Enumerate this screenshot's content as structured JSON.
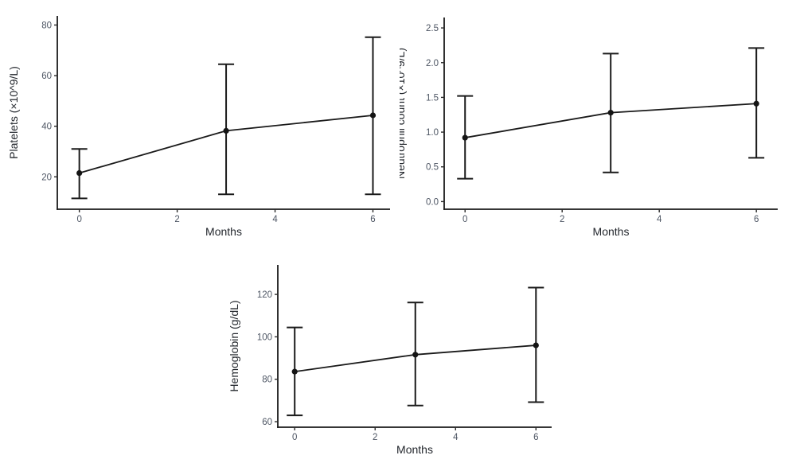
{
  "figure": {
    "background": "#ffffff",
    "description_visible_text_only": true
  },
  "style": {
    "axis_color": "#1a1a1a",
    "tick_color": "#2b2b2b",
    "tick_label_color": "#4d5563",
    "axis_title_color": "#23272d",
    "point_color": "#141414",
    "line_color": "#1a1a1a",
    "errorbar_color": "#1a1a1a"
  },
  "chart_data": [
    {
      "id": "platelets",
      "type": "line",
      "error_bars": true,
      "title": "",
      "xlabel": "Months",
      "ylabel": "Platelets (×10^9/L)",
      "x": [
        0,
        3,
        6
      ],
      "series": [
        {
          "name": "mean",
          "values": [
            21.5,
            38.2,
            44.3
          ]
        }
      ],
      "error_low": [
        11.5,
        13.1,
        13.1
      ],
      "error_high": [
        31.0,
        64.5,
        75.2
      ],
      "xticks": {
        "values": [
          0,
          2,
          4,
          6
        ],
        "labels": [
          "0",
          "2",
          "4",
          "6"
        ]
      },
      "yticks": {
        "values": [
          20,
          40,
          60,
          80
        ],
        "labels": [
          "20",
          "40",
          "60",
          "80"
        ]
      },
      "xlim": [
        -0.45,
        6.35
      ],
      "ylim": [
        7.2,
        83.6
      ],
      "grid": false,
      "legend": false
    },
    {
      "id": "neutrophil-count",
      "type": "line",
      "error_bars": true,
      "title": "",
      "xlabel": "Months",
      "ylabel": "Neutrophil count (×10^9/L)",
      "x": [
        0,
        3,
        6
      ],
      "series": [
        {
          "name": "mean",
          "values": [
            0.92,
            1.28,
            1.41
          ]
        }
      ],
      "error_low": [
        0.33,
        0.42,
        0.63
      ],
      "error_high": [
        1.52,
        2.13,
        2.21
      ],
      "xticks": {
        "values": [
          0,
          2,
          4,
          6
        ],
        "labels": [
          "0",
          "2",
          "4",
          "6"
        ]
      },
      "yticks": {
        "values": [
          0,
          0.5,
          1.0,
          1.5,
          2.0,
          2.5
        ],
        "labels": [
          "0.0",
          "0.5",
          "1.0",
          "1.5",
          "2.0",
          "2.5"
        ]
      },
      "xlim": [
        -0.43,
        6.44
      ],
      "ylim": [
        -0.11,
        2.65
      ],
      "grid": false,
      "legend": false
    },
    {
      "id": "hemoglobin",
      "type": "line",
      "error_bars": true,
      "title": "",
      "xlabel": "Months",
      "ylabel": "Hemoglobin (g/dL)",
      "x": [
        0,
        3,
        6
      ],
      "series": [
        {
          "name": "mean",
          "values": [
            83.6,
            91.6,
            96.0
          ]
        }
      ],
      "error_low": [
        63.0,
        67.6,
        69.2
      ],
      "error_high": [
        104.4,
        116.2,
        123.2
      ],
      "xticks": {
        "values": [
          0,
          2,
          4,
          6
        ],
        "labels": [
          "0",
          "2",
          "4",
          "6"
        ]
      },
      "yticks": {
        "values": [
          60,
          80,
          100,
          120
        ],
        "labels": [
          "60",
          "80",
          "100",
          "120"
        ]
      },
      "xlim": [
        -0.42,
        6.39
      ],
      "ylim": [
        57.4,
        133.9
      ],
      "grid": false,
      "legend": false
    }
  ]
}
